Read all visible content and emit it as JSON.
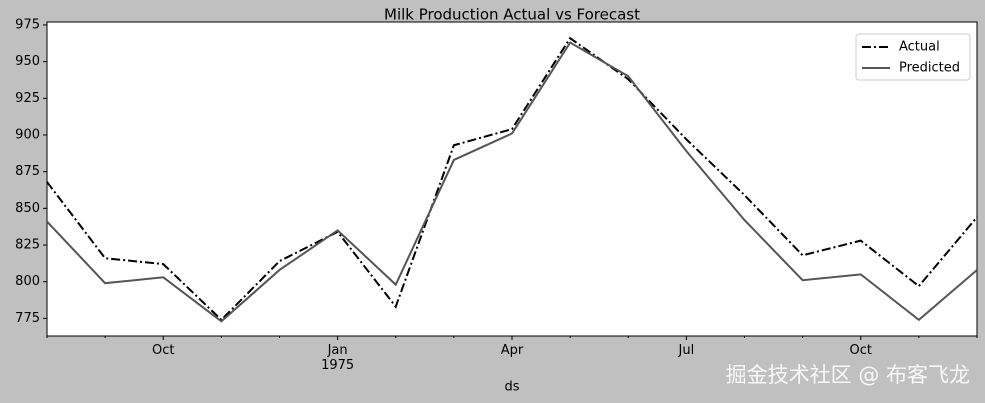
{
  "chart_data": {
    "type": "line",
    "title": "Milk Production Actual vs Forecast",
    "xlabel": "ds",
    "categories": [
      null,
      null,
      "Oct",
      null,
      null,
      "Jan 1975",
      null,
      null,
      "Apr",
      null,
      null,
      "Jul",
      null,
      null,
      "Oct",
      null,
      null
    ],
    "series": [
      {
        "name": "Actual",
        "color": "#000000",
        "dash": "dashdot",
        "values": [
          868,
          816,
          812,
          774,
          814,
          834,
          783,
          893,
          904,
          966,
          938,
          897,
          859,
          818,
          828,
          797,
          844
        ]
      },
      {
        "name": "Predicted",
        "color": "#555555",
        "dash": "solid",
        "values": [
          841,
          799,
          803,
          773,
          808,
          835,
          798,
          883,
          901,
          963,
          940,
          889,
          842,
          801,
          805,
          774,
          808
        ]
      }
    ],
    "ylim": [
      763,
      977
    ],
    "yticks": [
      775,
      800,
      825,
      850,
      875,
      900,
      925,
      950,
      975
    ],
    "legend": "upper right",
    "grid": false,
    "watermark": "掘金技术社区 @ 布客飞龙"
  }
}
